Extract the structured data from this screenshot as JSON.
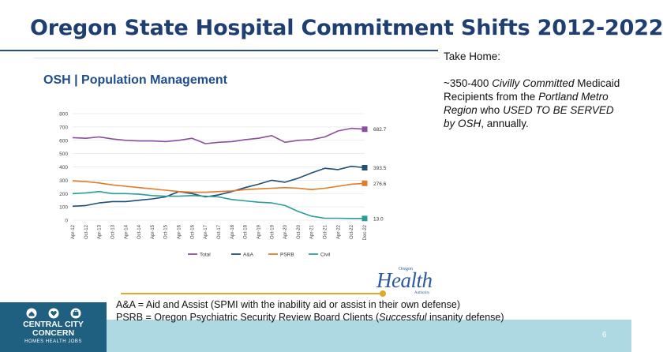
{
  "slide": {
    "title": "Oregon State Hospital Commitment Shifts 2012-2022",
    "chart_heading": "OSH | Population Management",
    "take_home": {
      "label": "Take Home:",
      "pre": "~350-400 ",
      "italic1": "Civilly Committed",
      "mid": " Medicaid Recipients from the ",
      "italic2": "Portland Metro Region",
      "mid2": " who ",
      "italic3": "USED TO BE SERVED by OSH",
      "post": ", annually."
    },
    "definitions": {
      "line1": "A&A = Aid and Assist (SPMI with the inability aid or assist in their own defense)",
      "line2_pre": "PSRB = Oregon Psychiatric Security Review Board Clients (",
      "line2_italic": "Successful",
      "line2_post": " insanity defense)"
    },
    "page_number": "6",
    "oha_logo": {
      "top": "Oregon",
      "main": "Health",
      "bottom": "Authority"
    },
    "ccc_logo": {
      "line1": "CENTRAL CITY",
      "line2": "CONCERN",
      "tagline": "HOMES  HEALTH  JOBS"
    }
  },
  "colors": {
    "title": "#1f3f73",
    "total": "#8a4f9e",
    "aa": "#1f4e79",
    "psrb": "#e07b27",
    "civil": "#2a9d97",
    "band": "#aed9e3",
    "ccc_block": "#1f5f80",
    "gold": "#e0a82e"
  },
  "chart_data": {
    "type": "line",
    "x": [
      "Apr-12",
      "Oct-12",
      "Apr-13",
      "Oct-13",
      "Apr-14",
      "Oct-14",
      "Apr-15",
      "Oct-15",
      "Apr-16",
      "Oct-16",
      "Apr-17",
      "Oct-17",
      "Apr-18",
      "Oct-18",
      "Apr-19",
      "Oct-19",
      "Apr-20",
      "Oct-20",
      "Apr-21",
      "Oct-21",
      "Apr-22",
      "Oct-22",
      "Dec-22"
    ],
    "ylim": [
      0,
      800
    ],
    "yticks": [
      0,
      100,
      200,
      300,
      400,
      500,
      600,
      700,
      800
    ],
    "grid": true,
    "legend": "bottom",
    "series": [
      {
        "name": "Total",
        "values": [
          620,
          615,
          625,
          610,
          600,
          595,
          595,
          590,
          600,
          615,
          575,
          585,
          590,
          605,
          615,
          635,
          585,
          600,
          605,
          625,
          670,
          690,
          683
        ],
        "end_label": "682.7"
      },
      {
        "name": "A&A",
        "values": [
          105,
          110,
          130,
          140,
          140,
          150,
          160,
          175,
          215,
          200,
          175,
          190,
          215,
          245,
          270,
          300,
          285,
          315,
          355,
          390,
          380,
          405,
          394
        ],
        "end_label": "393.5"
      },
      {
        "name": "PSRB",
        "values": [
          295,
          290,
          280,
          265,
          255,
          245,
          235,
          225,
          215,
          210,
          210,
          215,
          220,
          230,
          235,
          240,
          245,
          240,
          230,
          240,
          255,
          270,
          277
        ],
        "end_label": "276.6"
      },
      {
        "name": "Civil",
        "values": [
          200,
          205,
          215,
          200,
          200,
          195,
          185,
          180,
          180,
          185,
          180,
          175,
          155,
          145,
          135,
          130,
          110,
          65,
          30,
          15,
          15,
          13,
          13
        ],
        "end_label": "13.0"
      }
    ]
  }
}
